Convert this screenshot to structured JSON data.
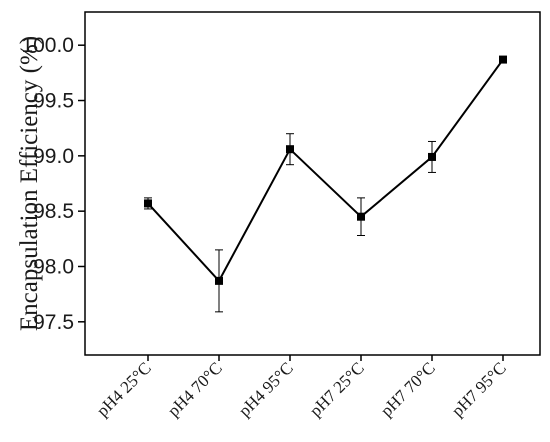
{
  "chart_data": {
    "type": "line",
    "title": "",
    "xlabel": "",
    "ylabel": "Encapsulation Efficiency (%)",
    "categories": [
      "pH4 25°C",
      "pH4 70°C",
      "pH4 95°C",
      "pH7 25°C",
      "pH7 70°C",
      "pH7 95°C"
    ],
    "series": [
      {
        "values": [
          98.57,
          97.87,
          99.06,
          98.45,
          98.99,
          99.87
        ],
        "errors": [
          0.05,
          0.28,
          0.14,
          0.17,
          0.14,
          0.0
        ]
      }
    ],
    "ylim": [
      97.2,
      100.3
    ],
    "yticks": [
      97.5,
      98.0,
      98.5,
      99.0,
      99.5,
      100.0
    ],
    "ytick_labels": [
      "97.5",
      "98.0",
      "98.5",
      "99.0",
      "99.5",
      "100.0"
    ],
    "grid": false,
    "legend": "none",
    "colors": {
      "line": "#000000",
      "marker": "#000000",
      "axis": "#000000"
    },
    "marker": "square"
  }
}
